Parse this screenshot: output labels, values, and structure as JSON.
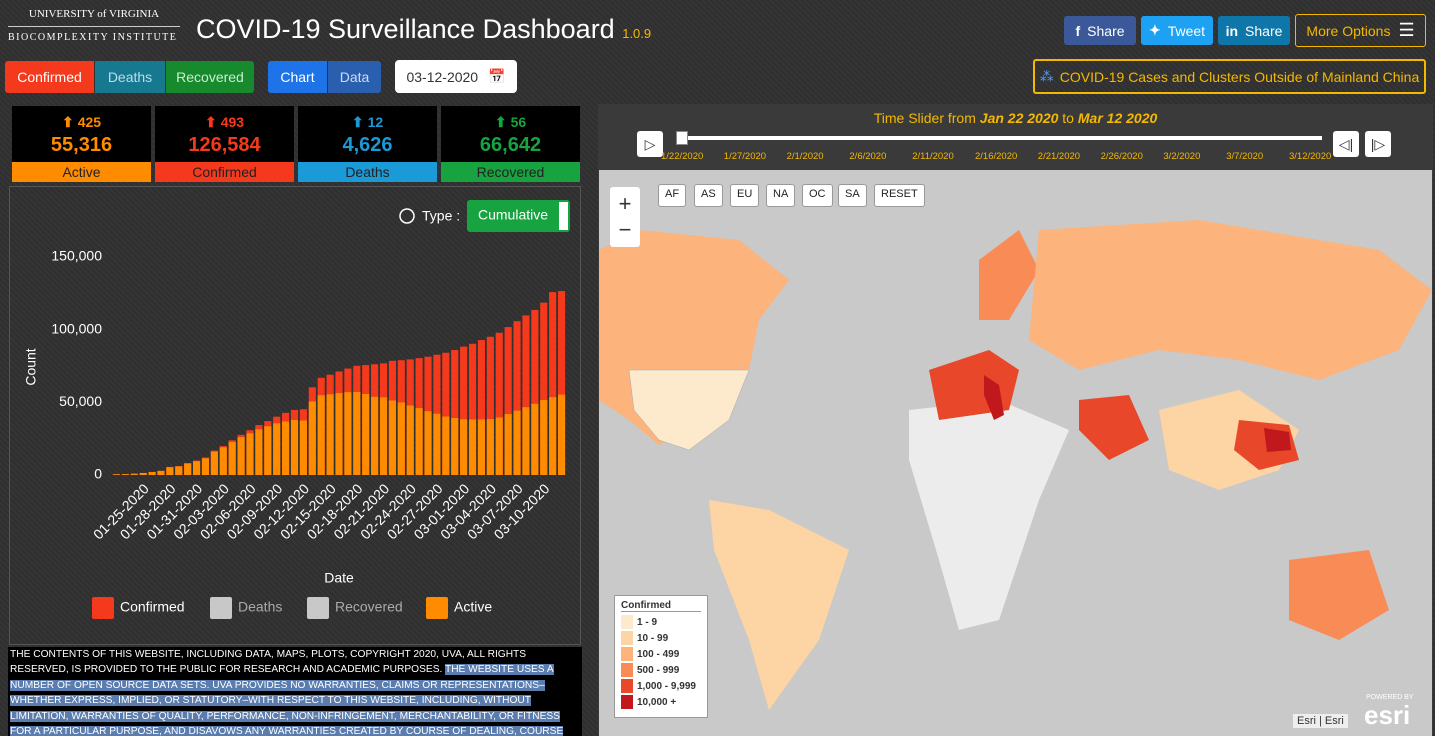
{
  "header": {
    "logo_top": "UNIVERSITY of VIRGINIA",
    "logo_bottom": "BIOCOMPLEXITY INSTITUTE",
    "title": "COVID-19 Surveillance Dashboard",
    "version": "1.0.9",
    "share_buttons": [
      "Share",
      "Tweet",
      "Share"
    ],
    "more": "More Options"
  },
  "toolbar": {
    "metrics": [
      "Confirmed",
      "Deaths",
      "Recovered"
    ],
    "views": [
      "Chart",
      "Data"
    ],
    "date": "03-12-2020",
    "link": "COVID-19 Cases and Clusters Outside of Mainland China"
  },
  "stats": [
    {
      "change": "425",
      "value": "55,316",
      "label": "Active",
      "color": "#ff8c00"
    },
    {
      "change": "493",
      "value": "126,584",
      "label": "Confirmed",
      "color": "#f5391c"
    },
    {
      "change": "12",
      "value": "4,626",
      "label": "Deaths",
      "color": "#1a9ad6"
    },
    {
      "change": "56",
      "value": "66,642",
      "label": "Recovered",
      "color": "#16a340"
    }
  ],
  "chart_data": {
    "type": "bar",
    "type_label": "Type :",
    "type_button": "Cumulative",
    "x_label": "Date",
    "y_label": "Count",
    "categories": [
      null,
      null,
      null,
      "01-25-2020",
      null,
      null,
      "01-28-2020",
      null,
      null,
      "01-31-2020",
      null,
      null,
      "02-03-2020",
      null,
      null,
      "02-06-2020",
      null,
      null,
      "02-09-2020",
      null,
      null,
      "02-12-2020",
      null,
      null,
      "02-15-2020",
      null,
      null,
      "02-18-2020",
      null,
      null,
      "02-21-2020",
      null,
      null,
      "02-24-2020",
      null,
      null,
      "02-27-2020",
      null,
      null,
      "03-01-2020",
      null,
      null,
      "03-04-2020",
      null,
      null,
      "03-07-2020",
      null,
      null,
      "03-10-2020",
      null,
      null
    ],
    "series": [
      {
        "name": "Confirmed",
        "color": "#f5391c",
        "values": [
          555,
          654,
          941,
          1434,
          2118,
          2927,
          5578,
          6166,
          8234,
          9927,
          12038,
          16787,
          19881,
          23892,
          27635,
          30817,
          34391,
          37120,
          40150,
          42762,
          44802,
          45221,
          60368,
          66885,
          69030,
          71224,
          73258,
          75136,
          75639,
          76197,
          76823,
          78579,
          78965,
          79568,
          80413,
          81395,
          82754,
          84120,
          86011,
          88369,
          90306,
          92840,
          95120,
          97886,
          101801,
          105847,
          109821,
          113590,
          118620,
          125875,
          126584
        ]
      },
      {
        "name": "Active",
        "color": "#ff8c00",
        "values": [
          510,
          608,
          879,
          1353,
          2010,
          2784,
          5340,
          5908,
          7922,
          9489,
          11495,
          16106,
          19055,
          22660,
          26021,
          28654,
          31459,
          33489,
          35571,
          36810,
          37863,
          37456,
          50598,
          54890,
          55536,
          56399,
          56998,
          57118,
          55746,
          53809,
          53423,
          51245,
          49937,
          47817,
          46017,
          43903,
          42176,
          40202,
          39241,
          38378,
          38216,
          38213,
          38453,
          39580,
          41924,
          44284,
          46655,
          48998,
          51567,
          53570,
          55316
        ]
      }
    ],
    "inactive_series": [
      {
        "name": "Deaths",
        "color": "#c8c8c8"
      },
      {
        "name": "Recovered",
        "color": "#c8c8c8"
      }
    ],
    "ylim": [
      0,
      160000
    ],
    "yticks": [
      0,
      {
        "value": 50000,
        "label": "50,000"
      },
      {
        "value": 100000,
        "label": "100,000"
      },
      {
        "value": 150000,
        "label": "150,000"
      }
    ],
    "grid": false
  },
  "map": {
    "slider_prefix": "Time Slider from",
    "slider_from": "Jan 22 2020",
    "slider_to_word": "to",
    "slider_to": "Mar 12 2020",
    "slider_ticks": [
      "1/22/2020",
      "1/27/2020",
      "2/1/2020",
      "2/6/2020",
      "2/11/2020",
      "2/16/2020",
      "2/21/2020",
      "2/26/2020",
      "3/2/2020",
      "3/7/2020",
      "3/12/2020"
    ],
    "regions": [
      "AF",
      "AS",
      "EU",
      "NA",
      "OC",
      "SA",
      "RESET"
    ],
    "zoom": [
      "+",
      "−"
    ],
    "legend_title": "Confirmed",
    "legend": [
      {
        "label": "1 - 9",
        "color": "#fde9cc"
      },
      {
        "label": "10 - 99",
        "color": "#fdd4a3"
      },
      {
        "label": "100 - 499",
        "color": "#fcb37c"
      },
      {
        "label": "500 - 999",
        "color": "#f98b56"
      },
      {
        "label": "1,000 - 9,999",
        "color": "#e8472a"
      },
      {
        "label": "10,000 +",
        "color": "#c0181c"
      }
    ],
    "attribution": "Esri | Esri",
    "powered": "POWERED BY",
    "brand": "esri"
  },
  "disclaimer": {
    "plain": "THE CONTENTS OF THIS WEBSITE, INCLUDING DATA, MAPS, PLOTS, COPYRIGHT 2020, UVA, ALL RIGHTS RESERVED, IS PROVIDED TO THE PUBLIC FOR RESEARCH AND ACADEMIC PURPOSES. ",
    "highlighted": "THE WEBSITE USES A NUMBER OF OPEN SOURCE DATA SETS. UVA PROVIDES NO WARRANTIES, CLAIMS OR REPRESENTATIONS–WHETHER EXPRESS, IMPLIED, OR STATUTORY–WITH RESPECT TO THIS WEBSITE, INCLUDING, WITHOUT LIMITATION, WARRANTIES OF QUALITY, PERFORMANCE, NON-INFRINGEMENT, MERCHANTABILITY, OR FITNESS FOR A PARTICULAR PURPOSE, AND DISAVOWS ANY WARRANTIES CREATED BY COURSE OF DEALING, COURSE OF PERFORMANCE, OR TRADE USAGE."
  }
}
